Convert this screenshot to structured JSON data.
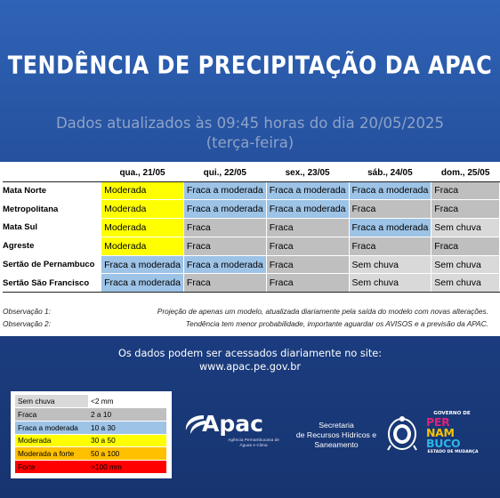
{
  "title": "TENDÊNCIA  DE PRECIPITAÇÃO DA APAC",
  "subtitle_line1": "Dados atualizados às 09:45 horas do dia 20/05/2025",
  "subtitle_line2": "(terça-feira)",
  "table": {
    "headers": [
      "",
      "qua., 21/05",
      "qui., 22/05",
      "sex., 23/05",
      "sáb., 24/05",
      "dom., 25/05"
    ],
    "rows": [
      {
        "region": "Mata Norte",
        "cells": [
          {
            "text": "Moderada",
            "class": "Moderada"
          },
          {
            "text": "Fraca a moderada",
            "class": "Fraca a moderada"
          },
          {
            "text": "Fraca a moderada",
            "class": "Fraca a moderada"
          },
          {
            "text": "Fraca a moderada",
            "class": "Fraca a moderada"
          },
          {
            "text": "Fraca",
            "class": "Fraca"
          }
        ]
      },
      {
        "region": "Metropolitana",
        "cells": [
          {
            "text": "Moderada",
            "class": "Moderada"
          },
          {
            "text": "Fraca a moderada",
            "class": "Fraca a moderada"
          },
          {
            "text": "Fraca a moderada",
            "class": "Fraca a moderada"
          },
          {
            "text": "Fraca",
            "class": "Fraca"
          },
          {
            "text": "Fraca",
            "class": "Fraca"
          }
        ]
      },
      {
        "region": "Mata Sul",
        "cells": [
          {
            "text": "Moderada",
            "class": "Moderada"
          },
          {
            "text": "Fraca",
            "class": "Fraca"
          },
          {
            "text": "Fraca",
            "class": "Fraca"
          },
          {
            "text": "Fraca a moderada",
            "class": "Fraca a moderada"
          },
          {
            "text": "Sem chuva",
            "class": "Sem chuva"
          }
        ]
      },
      {
        "region": "Agreste",
        "cells": [
          {
            "text": "Moderada",
            "class": "Moderada"
          },
          {
            "text": "Fraca",
            "class": "Fraca"
          },
          {
            "text": "Fraca",
            "class": "Fraca"
          },
          {
            "text": "Fraca",
            "class": "Fraca"
          },
          {
            "text": "Fraca",
            "class": "Fraca"
          }
        ]
      },
      {
        "region": "Sertão de Pernambuco",
        "cells": [
          {
            "text": "Fraca a moderada",
            "class": "Fraca a moderada"
          },
          {
            "text": "Fraca a moderada",
            "class": "Fraca a moderada"
          },
          {
            "text": "Fraca",
            "class": "Fraca"
          },
          {
            "text": "Sem chuva",
            "class": "Sem chuva"
          },
          {
            "text": "Sem chuva",
            "class": "Sem chuva"
          }
        ]
      },
      {
        "region": "Sertão São Francisco",
        "cells": [
          {
            "text": "Fraca a moderada",
            "class": "Fraca a moderada"
          },
          {
            "text": "Fraca",
            "class": "Fraca"
          },
          {
            "text": "Fraca",
            "class": "Fraca"
          },
          {
            "text": "Sem chuva",
            "class": "Sem chuva"
          },
          {
            "text": "Sem chuva",
            "class": "Sem chuva"
          }
        ]
      }
    ]
  },
  "observations": [
    {
      "label": "Observação 1:",
      "text": "Projeção de apenas um modelo, atualizada diariamente pela saída do modelo com novas alterações."
    },
    {
      "label": "Observação 2:",
      "text": "Tendência tem menor probabilidade, importante aguardar os AVISOS e a previsão da APAC."
    }
  ],
  "site_line1": "Os dados podem ser acessados diariamente no site:",
  "site_line2": "www.apac.pe.gov.br",
  "legend": [
    {
      "label": "Sem chuva",
      "range": "<2 mm",
      "class": "Sem chuva"
    },
    {
      "label": "Fraca",
      "range": "2 a 10",
      "class": "Fraca"
    },
    {
      "label": "Fraca a moderada",
      "range": "10 a 30",
      "class": "Fraca a moderada"
    },
    {
      "label": "Moderada",
      "range": "30 a 50",
      "class": "Moderada"
    },
    {
      "label": "Moderada a forte",
      "range": "50 a 100",
      "class": "Moderada a forte"
    },
    {
      "label": "Forte",
      "range": ">100 mm",
      "class": "Forte"
    }
  ],
  "colors": {
    "Sem chuva": "#d9d9d9",
    "Fraca": "#bfbfbf",
    "Fraca a moderada": "#9dc3e6",
    "Moderada": "#ffff00",
    "Moderada a forte": "#ffc000",
    "Forte": "#ff0000",
    "background": "#244f9c"
  },
  "logos": {
    "apac_name": "Apac",
    "apac_sub": "Agência Pernambucana de Águas e Clima",
    "secretaria": [
      "Secretaria",
      "de Recursos Hídricos e",
      "Saneamento"
    ],
    "gov_top": "GOVERNO DE",
    "gov_words": [
      "PER",
      "NAM",
      "BUCO"
    ],
    "gov_bottom": "ESTADO DE MUDANÇA"
  }
}
